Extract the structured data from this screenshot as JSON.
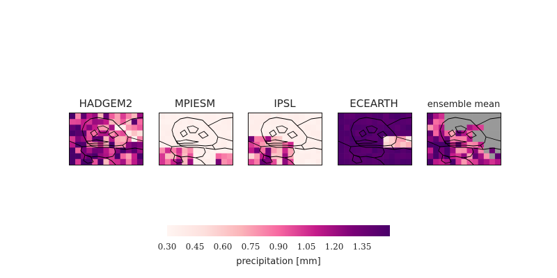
{
  "panels": [
    {
      "title": "HADGEM2",
      "scheme": "hadgem"
    },
    {
      "title": "MPIESM",
      "scheme": "mpiesm"
    },
    {
      "title": "IPSL",
      "scheme": "ipsl"
    },
    {
      "title": "ECEARTH",
      "scheme": "ecearth"
    },
    {
      "title": "ensemble mean",
      "scheme": "ensemble"
    }
  ],
  "colorbar": {
    "label": "precipitation [mm]",
    "min": 0.3,
    "max": 1.5,
    "ticks": [
      "0.30",
      "0.45",
      "0.60",
      "0.75",
      "0.90",
      "1.05",
      "1.20",
      "1.35"
    ],
    "colors": [
      "#fff5f2",
      "#fde0dd",
      "#fbb4b9",
      "#f768a1",
      "#c51b8a",
      "#7a0177",
      "#49006a"
    ]
  },
  "masked_color": "#999999",
  "border_color": "#000000"
}
